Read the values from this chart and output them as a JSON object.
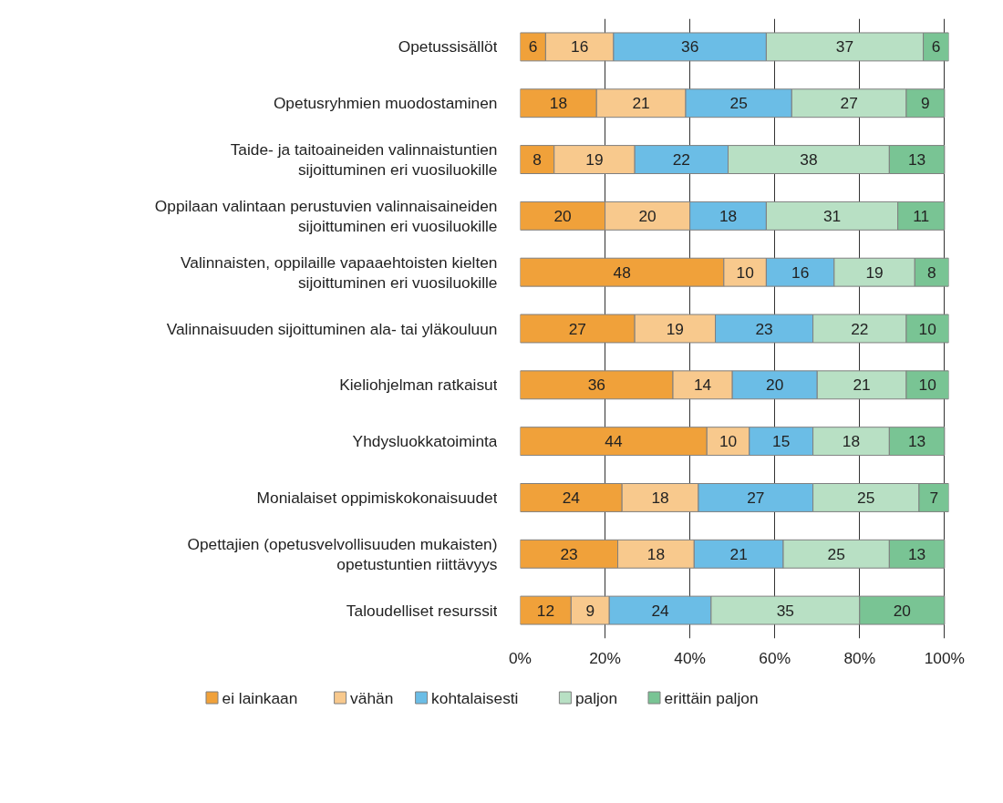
{
  "chart_data": {
    "type": "bar",
    "orientation": "horizontal",
    "stacked": true,
    "data_labels": true,
    "grid": "x",
    "legend": "bottom",
    "categories": [
      "Opetussisällöt",
      "Opetusryhmien muodostaminen",
      "Taide- ja taitoaineiden valinnaistuntien sijoittuminen eri vuosiluokille",
      "Oppilaan valintaan perustuvien valinnaisaineiden sijoittuminen eri vuosiluokille",
      "Valinnaisten, oppilaille vapaaehtoisten kielten sijoittuminen eri vuosiluokille",
      "Valinnaisuuden sijoittuminen ala- tai yläkouluun",
      "Kieliohjelman ratkaisut",
      "Yhdysluokkatoiminta",
      "Monialaiset oppimiskokonaisuudet",
      "Opettajien (opetusvelvollisuuden mukaisten) opetustuntien riittävyys",
      "Taloudelliset resurssit"
    ],
    "xlim": [
      0,
      101
    ],
    "xticks": [
      {
        "value": 0,
        "label": "0%"
      },
      {
        "value": 20,
        "label": "20%"
      },
      {
        "value": 40,
        "label": "40%"
      },
      {
        "value": 60,
        "label": "60%"
      },
      {
        "value": 80,
        "label": "80%"
      },
      {
        "value": 100,
        "label": "100%"
      }
    ],
    "series": [
      {
        "name": "ei lainkaan",
        "color": "#f0a13a",
        "values": [
          6,
          18,
          8,
          20,
          48,
          27,
          36,
          44,
          24,
          23,
          12
        ]
      },
      {
        "name": "vähän",
        "color": "#f8c98d",
        "values": [
          16,
          21,
          19,
          20,
          10,
          19,
          14,
          10,
          18,
          18,
          9
        ]
      },
      {
        "name": "kohtalaisesti",
        "color": "#6bbde6",
        "values": [
          36,
          25,
          22,
          18,
          16,
          23,
          20,
          15,
          27,
          21,
          24
        ]
      },
      {
        "name": "paljon",
        "color": "#b8e0c4",
        "values": [
          37,
          27,
          38,
          31,
          19,
          22,
          21,
          18,
          25,
          25,
          35
        ]
      },
      {
        "name": "erittäin paljon",
        "color": "#79c494",
        "values": [
          6,
          9,
          13,
          11,
          8,
          10,
          10,
          13,
          7,
          13,
          20
        ]
      }
    ]
  }
}
